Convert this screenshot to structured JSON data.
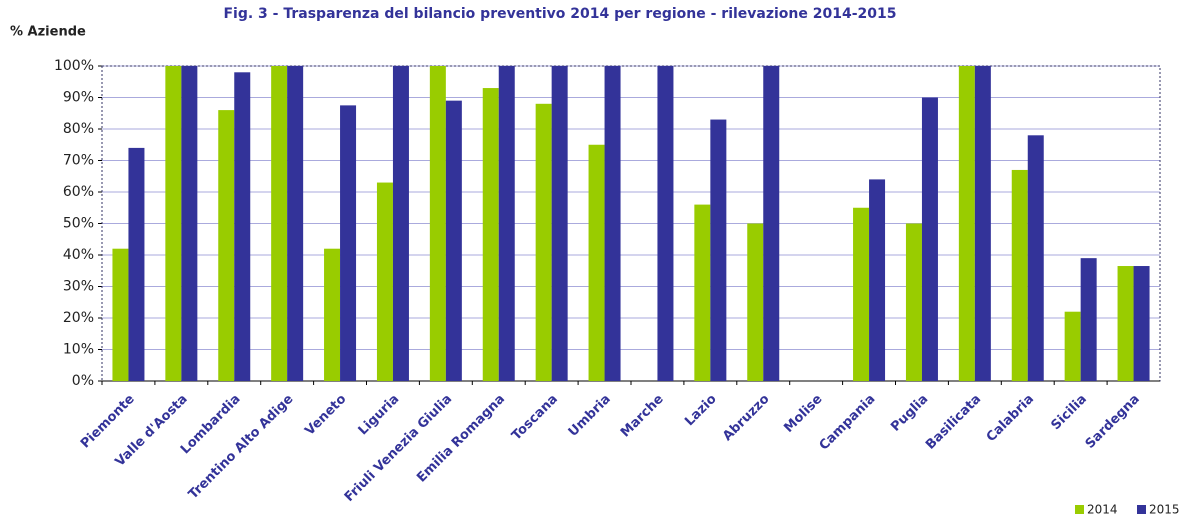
{
  "chart_data": {
    "type": "bar",
    "title": "Fig. 3 - Trasparenza del bilancio preventivo 2014 per regione - rilevazione 2014-2015",
    "y_label": "% Aziende",
    "categories": [
      "Piemonte",
      "Valle d'Aosta",
      "Lombardia",
      "Trentino Alto Adige",
      "Veneto",
      "Liguria",
      "Friuli Venezia Giulia",
      "Emilia Romagna",
      "Toscana",
      "Umbria",
      "Marche",
      "Lazio",
      "Abruzzo",
      "Molise",
      "Campania",
      "Puglia",
      "Basilicata",
      "Calabria",
      "Sicilia",
      "Sardegna"
    ],
    "series": [
      {
        "name": "2014",
        "color": "#99cc00",
        "values": [
          42,
          100,
          86,
          100,
          42,
          63,
          100,
          93,
          88,
          75,
          0,
          56,
          50,
          0,
          55,
          50,
          100,
          67,
          22,
          36.5
        ]
      },
      {
        "name": "2015",
        "color": "#333399",
        "values": [
          74,
          100,
          98,
          100,
          87.5,
          100,
          89,
          100,
          100,
          100,
          100,
          83,
          100,
          0,
          64,
          90,
          100,
          78,
          39,
          36.5
        ]
      }
    ],
    "ylim": [
      0,
      100
    ],
    "yticks": [
      {
        "value": 0,
        "label": "0%"
      },
      {
        "value": 10,
        "label": "10%"
      },
      {
        "value": 20,
        "label": "20%"
      },
      {
        "value": 30,
        "label": "30%"
      },
      {
        "value": 40,
        "label": "40%"
      },
      {
        "value": 50,
        "label": "50%"
      },
      {
        "value": 60,
        "label": "60%"
      },
      {
        "value": 70,
        "label": "70%"
      },
      {
        "value": 80,
        "label": "80%"
      },
      {
        "value": 90,
        "label": "90%"
      },
      {
        "value": 100,
        "label": "100%"
      }
    ],
    "grid": true,
    "legend": "bottom-right"
  }
}
